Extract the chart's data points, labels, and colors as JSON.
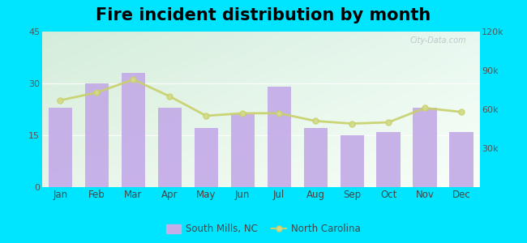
{
  "title": "Fire incident distribution by month",
  "months": [
    "Jan",
    "Feb",
    "Mar",
    "Apr",
    "May",
    "Jun",
    "Jul",
    "Aug",
    "Sep",
    "Oct",
    "Nov",
    "Dec"
  ],
  "bar_values": [
    23,
    30,
    33,
    23,
    17,
    21,
    29,
    17,
    15,
    16,
    23,
    16
  ],
  "line_values": [
    67000,
    73000,
    83000,
    70000,
    55000,
    57000,
    57000,
    51000,
    49000,
    50000,
    61000,
    58000
  ],
  "bar_color": "#c5aee8",
  "line_color": "#c8d06a",
  "line_marker_color": "#d4db8a",
  "background_outer": "#00e5ff",
  "ylim_left": [
    0,
    45
  ],
  "ylim_right": [
    0,
    120000
  ],
  "yticks_left": [
    0,
    15,
    30,
    45
  ],
  "yticks_right": [
    30000,
    60000,
    90000,
    120000
  ],
  "ytick_labels_right": [
    "30k",
    "60k",
    "90k",
    "120k"
  ],
  "legend_sm_label": "South Mills, NC",
  "legend_nc_label": "North Carolina",
  "title_fontsize": 15,
  "watermark": "City-Data.com"
}
